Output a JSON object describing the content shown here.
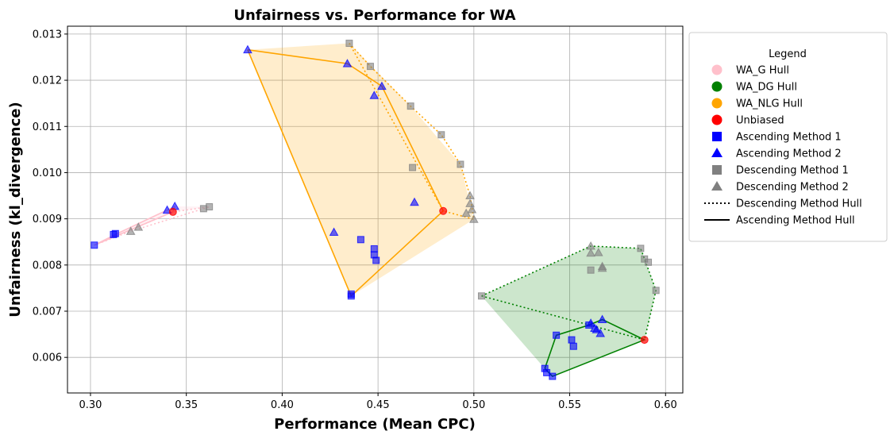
{
  "chart_data": {
    "type": "scatter",
    "title": "Unfairness vs. Performance for WA",
    "xlabel": "Performance (Mean CPC)",
    "ylabel": "Unfairness (kl_divergence)",
    "xlim": [
      0.288,
      0.609
    ],
    "ylim": [
      0.00523,
      0.01317
    ],
    "xticks": [
      "0.30",
      "0.35",
      "0.40",
      "0.45",
      "0.50",
      "0.55",
      "0.60"
    ],
    "xtick_values": [
      0.3,
      0.35,
      0.4,
      0.45,
      0.5,
      0.55,
      0.6
    ],
    "yticks": [
      "0.006",
      "0.007",
      "0.008",
      "0.009",
      "0.010",
      "0.011",
      "0.012",
      "0.013"
    ],
    "ytick_values": [
      0.006,
      0.007,
      0.008,
      0.009,
      0.01,
      0.011,
      0.012,
      0.013
    ],
    "grid": true,
    "legend_title": "Legend",
    "legend_position": "outside-right",
    "legend": [
      {
        "label": "WA_G Hull",
        "marker": "circle",
        "color": "#ffc0cb"
      },
      {
        "label": "WA_DG Hull",
        "marker": "circle",
        "color": "#008000"
      },
      {
        "label": "WA_NLG Hull",
        "marker": "circle",
        "color": "#ffa500"
      },
      {
        "label": "Unbiased",
        "marker": "circle",
        "color": "#ff0000"
      },
      {
        "label": "Ascending Method 1",
        "marker": "square",
        "color": "#0000ff"
      },
      {
        "label": "Ascending Method 2",
        "marker": "triangle",
        "color": "#0000ff"
      },
      {
        "label": "Descending Method 1",
        "marker": "square",
        "color": "#808080"
      },
      {
        "label": "Descending Method 2",
        "marker": "triangle",
        "color": "#808080"
      },
      {
        "label": "Descending Method Hull",
        "marker": "dotted-line",
        "color": "#000000"
      },
      {
        "label": "Ascending Method Hull",
        "marker": "solid-line",
        "color": "#000000"
      }
    ],
    "groups": [
      {
        "name": "WA_G",
        "color": "#ffc0cb",
        "unbiased": [
          0.343,
          0.00915
        ],
        "asc_m1": [
          [
            0.302,
            0.00843
          ],
          [
            0.312,
            0.00866
          ],
          [
            0.313,
            0.00868
          ]
        ],
        "asc_m2": [
          [
            0.34,
            0.00919
          ],
          [
            0.344,
            0.00927
          ]
        ],
        "desc_m1": [
          [
            0.359,
            0.00922
          ],
          [
            0.362,
            0.00926
          ]
        ],
        "desc_m2": [
          [
            0.321,
            0.00873
          ],
          [
            0.325,
            0.00882
          ]
        ],
        "asc_hull": [
          [
            0.302,
            0.00843
          ],
          [
            0.313,
            0.00866
          ],
          [
            0.34,
            0.00919
          ],
          [
            0.344,
            0.00927
          ],
          [
            0.343,
            0.00915
          ],
          [
            0.302,
            0.00843
          ]
        ],
        "desc_hull": [
          [
            0.302,
            0.00843
          ],
          [
            0.321,
            0.00873
          ],
          [
            0.359,
            0.00922
          ],
          [
            0.362,
            0.00926
          ],
          [
            0.343,
            0.00915
          ],
          [
            0.302,
            0.00843
          ]
        ],
        "fill": [
          [
            0.302,
            0.00843
          ],
          [
            0.344,
            0.00927
          ],
          [
            0.362,
            0.00926
          ],
          [
            0.343,
            0.00915
          ],
          [
            0.325,
            0.00882
          ],
          [
            0.302,
            0.00843
          ]
        ]
      },
      {
        "name": "WA_NLG",
        "color": "#ffa500",
        "unbiased": [
          0.484,
          0.00917
        ],
        "asc_m1": [
          [
            0.436,
            0.00733
          ],
          [
            0.436,
            0.00737
          ],
          [
            0.441,
            0.00855
          ],
          [
            0.448,
            0.00822
          ],
          [
            0.448,
            0.00835
          ],
          [
            0.449,
            0.0081
          ]
        ],
        "asc_m2": [
          [
            0.382,
            0.01266
          ],
          [
            0.434,
            0.01236
          ],
          [
            0.448,
            0.01167
          ],
          [
            0.452,
            0.01187
          ],
          [
            0.469,
            0.00936
          ],
          [
            0.427,
            0.00871
          ]
        ],
        "desc_m1": [
          [
            0.435,
            0.0128
          ],
          [
            0.446,
            0.0123
          ],
          [
            0.467,
            0.01144
          ],
          [
            0.483,
            0.01082
          ],
          [
            0.493,
            0.01018
          ],
          [
            0.468,
            0.01011
          ]
        ],
        "desc_m2": [
          [
            0.498,
            0.0095
          ],
          [
            0.498,
            0.00933
          ],
          [
            0.499,
            0.0092
          ],
          [
            0.496,
            0.00912
          ],
          [
            0.5,
            0.00899
          ]
        ],
        "asc_hull": [
          [
            0.382,
            0.01266
          ],
          [
            0.434,
            0.01236
          ],
          [
            0.452,
            0.01187
          ],
          [
            0.484,
            0.00917
          ],
          [
            0.436,
            0.00733
          ],
          [
            0.382,
            0.01266
          ]
        ],
        "desc_hull": [
          [
            0.435,
            0.0128
          ],
          [
            0.446,
            0.0123
          ],
          [
            0.467,
            0.01144
          ],
          [
            0.483,
            0.01082
          ],
          [
            0.493,
            0.01018
          ],
          [
            0.498,
            0.0095
          ],
          [
            0.5,
            0.00899
          ],
          [
            0.484,
            0.00917
          ],
          [
            0.435,
            0.0128
          ]
        ],
        "fill": [
          [
            0.382,
            0.01266
          ],
          [
            0.435,
            0.0128
          ],
          [
            0.467,
            0.01144
          ],
          [
            0.493,
            0.01018
          ],
          [
            0.5,
            0.00899
          ],
          [
            0.436,
            0.00733
          ],
          [
            0.382,
            0.01266
          ]
        ]
      },
      {
        "name": "WA_DG",
        "color": "#008000",
        "unbiased": [
          0.589,
          0.00638
        ],
        "asc_m1": [
          [
            0.537,
            0.00576
          ],
          [
            0.538,
            0.00567
          ],
          [
            0.541,
            0.00559
          ],
          [
            0.543,
            0.00648
          ],
          [
            0.551,
            0.00638
          ],
          [
            0.552,
            0.00624
          ],
          [
            0.56,
            0.0067
          ]
        ],
        "asc_m2": [
          [
            0.561,
            0.00674
          ],
          [
            0.563,
            0.00663
          ],
          [
            0.564,
            0.0066
          ],
          [
            0.566,
            0.00652
          ],
          [
            0.567,
            0.00682
          ]
        ],
        "desc_m1": [
          [
            0.504,
            0.00733
          ],
          [
            0.561,
            0.00789
          ],
          [
            0.587,
            0.00836
          ],
          [
            0.589,
            0.00813
          ],
          [
            0.591,
            0.00806
          ],
          [
            0.595,
            0.00745
          ]
        ],
        "desc_m2": [
          [
            0.561,
            0.00841
          ],
          [
            0.561,
            0.00826
          ],
          [
            0.565,
            0.00827
          ],
          [
            0.567,
            0.00797
          ],
          [
            0.567,
            0.00793
          ]
        ],
        "asc_hull": [
          [
            0.537,
            0.00576
          ],
          [
            0.543,
            0.00648
          ],
          [
            0.56,
            0.0067
          ],
          [
            0.567,
            0.00682
          ],
          [
            0.589,
            0.00638
          ],
          [
            0.541,
            0.00559
          ],
          [
            0.537,
            0.00576
          ]
        ],
        "desc_hull": [
          [
            0.504,
            0.00733
          ],
          [
            0.561,
            0.00841
          ],
          [
            0.587,
            0.00836
          ],
          [
            0.595,
            0.00745
          ],
          [
            0.589,
            0.00638
          ],
          [
            0.504,
            0.00733
          ]
        ],
        "fill": [
          [
            0.504,
            0.00733
          ],
          [
            0.561,
            0.00841
          ],
          [
            0.587,
            0.00836
          ],
          [
            0.595,
            0.00745
          ],
          [
            0.589,
            0.00638
          ],
          [
            0.541,
            0.00559
          ],
          [
            0.537,
            0.00576
          ],
          [
            0.504,
            0.00733
          ]
        ]
      }
    ]
  }
}
